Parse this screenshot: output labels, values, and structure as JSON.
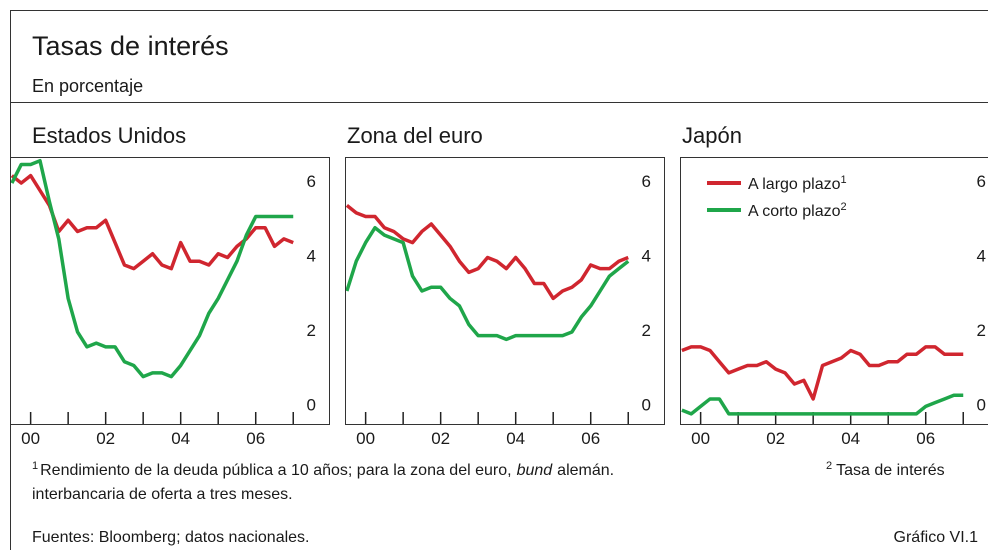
{
  "title": "Tasas de interés",
  "subtitle": "En porcentaje",
  "chart_data": [
    {
      "type": "line",
      "title": "Estados Unidos",
      "x": [
        1999.5,
        1999.75,
        2000,
        2000.25,
        2000.5,
        2000.75,
        2001,
        2001.25,
        2001.5,
        2001.75,
        2002,
        2002.25,
        2002.5,
        2002.75,
        2003,
        2003.25,
        2003.5,
        2003.75,
        2004,
        2004.25,
        2004.5,
        2004.75,
        2005,
        2005.25,
        2005.5,
        2005.75,
        2006,
        2006.25,
        2006.5,
        2006.75,
        2007
      ],
      "xlim": [
        1999.45,
        2007.98
      ],
      "xticks": [
        {
          "value": 2000,
          "label": "00"
        },
        {
          "value": 2002,
          "label": "02"
        },
        {
          "value": 2004,
          "label": "04"
        },
        {
          "value": 2006,
          "label": "06"
        }
      ],
      "xminor_ticks": [
        2001,
        2003,
        2005,
        2007
      ],
      "ylim": [
        -0.2,
        7.0
      ],
      "yticks": [
        0,
        2,
        4,
        6
      ],
      "series": [
        {
          "color": "#d0262f",
          "values": [
            6.5,
            6.3,
            6.5,
            6.1,
            5.7,
            5.0,
            5.3,
            5.0,
            5.1,
            5.1,
            5.3,
            4.7,
            4.1,
            4.0,
            4.2,
            4.4,
            4.1,
            4.0,
            4.7,
            4.2,
            4.2,
            4.1,
            4.4,
            4.3,
            4.6,
            4.8,
            5.1,
            5.1,
            4.6,
            4.8,
            4.7
          ]
        },
        {
          "color": "#1fa64a",
          "values": [
            6.3,
            6.8,
            6.8,
            6.9,
            5.8,
            4.8,
            3.2,
            2.3,
            1.9,
            2.0,
            1.9,
            1.9,
            1.5,
            1.4,
            1.1,
            1.2,
            1.2,
            1.1,
            1.4,
            1.8,
            2.2,
            2.8,
            3.2,
            3.7,
            4.2,
            4.9,
            5.4,
            5.4,
            5.4,
            5.4,
            5.4
          ]
        }
      ]
    },
    {
      "type": "line",
      "title": "Zona del euro",
      "x": [
        1999.5,
        1999.75,
        2000,
        2000.25,
        2000.5,
        2000.75,
        2001,
        2001.25,
        2001.5,
        2001.75,
        2002,
        2002.25,
        2002.5,
        2002.75,
        2003,
        2003.25,
        2003.5,
        2003.75,
        2004,
        2004.25,
        2004.5,
        2004.75,
        2005,
        2005.25,
        2005.5,
        2005.75,
        2006,
        2006.25,
        2006.5,
        2006.75,
        2007
      ],
      "xlim": [
        1999.45,
        2007.98
      ],
      "xticks": [
        {
          "value": 2000,
          "label": "00"
        },
        {
          "value": 2002,
          "label": "02"
        },
        {
          "value": 2004,
          "label": "04"
        },
        {
          "value": 2006,
          "label": "06"
        }
      ],
      "xminor_ticks": [
        2001,
        2003,
        2005,
        2007
      ],
      "ylim": [
        -0.2,
        7.0
      ],
      "yticks": [
        0,
        2,
        4,
        6
      ],
      "series": [
        {
          "color": "#d0262f",
          "values": [
            5.7,
            5.5,
            5.4,
            5.4,
            5.1,
            5.0,
            4.8,
            4.7,
            5.0,
            5.2,
            4.9,
            4.6,
            4.2,
            3.9,
            4.0,
            4.3,
            4.2,
            4.0,
            4.3,
            4.0,
            3.6,
            3.6,
            3.2,
            3.4,
            3.5,
            3.7,
            4.1,
            4.0,
            4.0,
            4.2,
            4.3
          ]
        },
        {
          "color": "#1fa64a",
          "values": [
            3.4,
            4.2,
            4.7,
            5.1,
            4.9,
            4.8,
            4.7,
            3.8,
            3.4,
            3.5,
            3.5,
            3.2,
            3.0,
            2.5,
            2.2,
            2.2,
            2.2,
            2.1,
            2.2,
            2.2,
            2.2,
            2.2,
            2.2,
            2.2,
            2.3,
            2.7,
            3.0,
            3.4,
            3.8,
            4.0,
            4.2
          ]
        }
      ]
    },
    {
      "type": "line",
      "title": "Japón",
      "x": [
        1999.5,
        1999.75,
        2000,
        2000.25,
        2000.5,
        2000.75,
        2001,
        2001.25,
        2001.5,
        2001.75,
        2002,
        2002.25,
        2002.5,
        2002.75,
        2003,
        2003.25,
        2003.5,
        2003.75,
        2004,
        2004.25,
        2004.5,
        2004.75,
        2005,
        2005.25,
        2005.5,
        2005.75,
        2006,
        2006.25,
        2006.5,
        2006.75,
        2007
      ],
      "xlim": [
        1999.45,
        2007.98
      ],
      "xticks": [
        {
          "value": 2000,
          "label": "00"
        },
        {
          "value": 2002,
          "label": "02"
        },
        {
          "value": 2004,
          "label": "04"
        },
        {
          "value": 2006,
          "label": "06"
        }
      ],
      "xminor_ticks": [
        2001,
        2003,
        2005,
        2007
      ],
      "ylim": [
        -0.2,
        7.0
      ],
      "yticks": [
        0,
        2,
        4,
        6
      ],
      "legend": "upper left",
      "series": [
        {
          "name": "A largo plazo",
          "note": "1",
          "color": "#d0262f",
          "values": [
            1.8,
            1.9,
            1.9,
            1.8,
            1.5,
            1.2,
            1.3,
            1.4,
            1.4,
            1.5,
            1.3,
            1.2,
            0.9,
            1.0,
            0.5,
            1.4,
            1.5,
            1.6,
            1.8,
            1.7,
            1.4,
            1.4,
            1.5,
            1.5,
            1.7,
            1.7,
            1.9,
            1.9,
            1.7,
            1.7,
            1.7
          ]
        },
        {
          "name": "A corto plazo",
          "note": "2",
          "color": "#1fa64a",
          "values": [
            0.2,
            0.1,
            0.3,
            0.5,
            0.5,
            0.1,
            0.1,
            0.1,
            0.1,
            0.1,
            0.1,
            0.1,
            0.1,
            0.1,
            0.1,
            0.1,
            0.1,
            0.1,
            0.1,
            0.1,
            0.1,
            0.1,
            0.1,
            0.1,
            0.1,
            0.1,
            0.3,
            0.4,
            0.5,
            0.6,
            0.6
          ]
        }
      ]
    }
  ],
  "footnotes": [
    {
      "marker": "1",
      "text": "Rendimiento de la deuda pública a 10 años; para la zona del euro,",
      "emphasis": "bund",
      "after": "alemán."
    },
    {
      "marker": "2",
      "lines": [
        "Tasa de interés",
        "interbancaria de oferta a tres meses."
      ]
    }
  ],
  "source": "Fuentes: Bloomberg; datos nacionales.",
  "figure_id": "Gráfico VI.1"
}
